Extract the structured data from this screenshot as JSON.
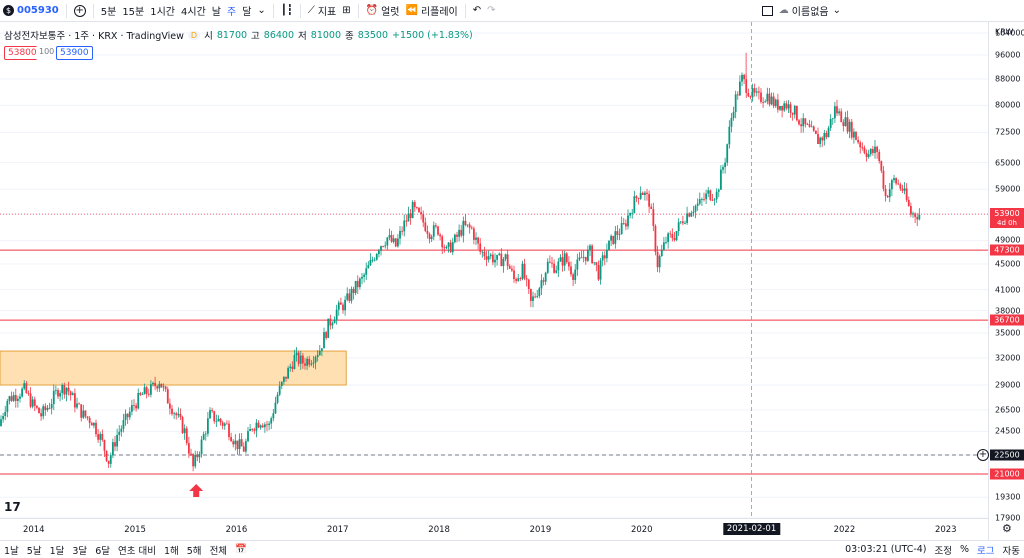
{
  "toolbar": {
    "symbol": "005930",
    "intervals": [
      "5분",
      "15분",
      "1시간",
      "4시간",
      "날",
      "주",
      "달"
    ],
    "active_interval": "주",
    "indicators_label": "지표",
    "alert_label": "얼럿",
    "replay_label": "리플레이",
    "layout_name": "이름없음"
  },
  "legend": {
    "title": "삼성전자보통주 · 1주 · KRX · TradingView",
    "badge": "D",
    "open_label": "시",
    "open": "81700",
    "high_label": "고",
    "high": "86400",
    "low_label": "저",
    "low": "81000",
    "close_label": "종",
    "close": "83500",
    "change": "+1500 (+1.83%)",
    "sell": "53800",
    "qty": "100",
    "buy": "53900"
  },
  "price_axis": {
    "currency": "KRW",
    "ticks": [
      "104000",
      "96000",
      "88000",
      "80000",
      "72500",
      "65000",
      "59000",
      "53900",
      "49000",
      "45000",
      "41000",
      "38000",
      "35000",
      "32000",
      "29000",
      "26500",
      "24500",
      "22500",
      "21000",
      "19300",
      "17900"
    ],
    "labels": [
      {
        "value": "53900",
        "sub": "4d 0h",
        "color": "#f23645"
      },
      {
        "value": "47300",
        "color": "#f23645"
      },
      {
        "value": "36700",
        "color": "#f23645"
      },
      {
        "value": "22500",
        "color": "#131722"
      },
      {
        "value": "21000",
        "color": "#f23645"
      }
    ]
  },
  "time_axis": {
    "ticks": [
      "2014",
      "2015",
      "2016",
      "2017",
      "2018",
      "2019",
      "2020",
      "2021-02-01",
      "2022",
      "2023"
    ],
    "crosshair_date": "2021-02-01"
  },
  "bottombar": {
    "ranges": [
      "1날",
      "5날",
      "1달",
      "3달",
      "6달",
      "연초 대비",
      "1해",
      "5해",
      "전체"
    ],
    "time": "03:03:21 (UTC-4)",
    "adjust": "조정",
    "percent": "%",
    "log": "로그",
    "auto": "자동"
  },
  "colors": {
    "up": "#089981",
    "down": "#f23645",
    "accent": "#2962ff",
    "zone": "#ffe0b2"
  },
  "chart_data": {
    "type": "candlestick",
    "x_range": [
      "2013-09",
      "2023-06"
    ],
    "log_scale": true,
    "ylim": [
      17900,
      104000
    ],
    "weekly_close": [
      [
        "2013-09",
        25000
      ],
      [
        "2013-10",
        27500
      ],
      [
        "2013-11",
        28000
      ],
      [
        "2013-12",
        28500
      ],
      [
        "2014-01",
        27000
      ],
      [
        "2014-02",
        26000
      ],
      [
        "2014-03",
        27000
      ],
      [
        "2014-04",
        28500
      ],
      [
        "2014-05",
        28800
      ],
      [
        "2014-06",
        27200
      ],
      [
        "2014-07",
        26000
      ],
      [
        "2014-08",
        25500
      ],
      [
        "2014-09",
        24000
      ],
      [
        "2014-10",
        22000
      ],
      [
        "2014-11",
        24200
      ],
      [
        "2014-12",
        25500
      ],
      [
        "2015-01",
        27000
      ],
      [
        "2015-02",
        28000
      ],
      [
        "2015-03",
        28500
      ],
      [
        "2015-04",
        29500
      ],
      [
        "2015-05",
        27500
      ],
      [
        "2015-06",
        26000
      ],
      [
        "2015-07",
        24500
      ],
      [
        "2015-08",
        21500
      ],
      [
        "2015-09",
        23500
      ],
      [
        "2015-10",
        26000
      ],
      [
        "2015-11",
        25500
      ],
      [
        "2015-12",
        25000
      ],
      [
        "2016-01",
        23500
      ],
      [
        "2016-02",
        23000
      ],
      [
        "2016-03",
        25000
      ],
      [
        "2016-04",
        25500
      ],
      [
        "2016-05",
        25000
      ],
      [
        "2016-06",
        28000
      ],
      [
        "2016-07",
        30000
      ],
      [
        "2016-08",
        32000
      ],
      [
        "2016-09",
        31500
      ],
      [
        "2016-10",
        32000
      ],
      [
        "2016-11",
        33000
      ],
      [
        "2016-12",
        36000
      ],
      [
        "2017-01",
        38000
      ],
      [
        "2017-02",
        39000
      ],
      [
        "2017-03",
        41000
      ],
      [
        "2017-04",
        42500
      ],
      [
        "2017-05",
        45000
      ],
      [
        "2017-06",
        48000
      ],
      [
        "2017-07",
        49500
      ],
      [
        "2017-08",
        48000
      ],
      [
        "2017-09",
        52000
      ],
      [
        "2017-10",
        55000
      ],
      [
        "2017-11",
        53000
      ],
      [
        "2017-12",
        50500
      ],
      [
        "2018-01",
        51000
      ],
      [
        "2018-02",
        47000
      ],
      [
        "2018-03",
        49000
      ],
      [
        "2018-04",
        51500
      ],
      [
        "2018-05",
        51000
      ],
      [
        "2018-06",
        47000
      ],
      [
        "2018-07",
        46500
      ],
      [
        "2018-08",
        45500
      ],
      [
        "2018-09",
        46000
      ],
      [
        "2018-10",
        42500
      ],
      [
        "2018-11",
        44000
      ],
      [
        "2018-12",
        39000
      ],
      [
        "2019-01",
        41500
      ],
      [
        "2019-02",
        45000
      ],
      [
        "2019-03",
        44500
      ],
      [
        "2019-04",
        46000
      ],
      [
        "2019-05",
        43500
      ],
      [
        "2019-06",
        46000
      ],
      [
        "2019-07",
        47000
      ],
      [
        "2019-08",
        43500
      ],
      [
        "2019-09",
        47500
      ],
      [
        "2019-10",
        50000
      ],
      [
        "2019-11",
        51500
      ],
      [
        "2019-12",
        55500
      ],
      [
        "2020-01",
        59000
      ],
      [
        "2020-02",
        56500
      ],
      [
        "2020-03",
        45000
      ],
      [
        "2020-04",
        49000
      ],
      [
        "2020-05",
        50000
      ],
      [
        "2020-06",
        53000
      ],
      [
        "2020-07",
        55000
      ],
      [
        "2020-08",
        56000
      ],
      [
        "2020-09",
        58000
      ],
      [
        "2020-10",
        58000
      ],
      [
        "2020-11",
        66000
      ],
      [
        "2020-12",
        80000
      ],
      [
        "2021-01",
        88000
      ],
      [
        "2021-02",
        83500
      ],
      [
        "2021-03",
        82000
      ],
      [
        "2021-04",
        83000
      ],
      [
        "2021-05",
        80000
      ],
      [
        "2021-06",
        80500
      ],
      [
        "2021-07",
        79000
      ],
      [
        "2021-08",
        75000
      ],
      [
        "2021-09",
        73000
      ],
      [
        "2021-10",
        70500
      ],
      [
        "2021-11",
        72000
      ],
      [
        "2021-12",
        79000
      ],
      [
        "2022-01",
        76000
      ],
      [
        "2022-02",
        73000
      ],
      [
        "2022-03",
        69500
      ],
      [
        "2022-04",
        67000
      ],
      [
        "2022-05",
        68000
      ],
      [
        "2022-06",
        57500
      ],
      [
        "2022-07",
        61000
      ],
      [
        "2022-08",
        59000
      ],
      [
        "2022-09",
        54000
      ],
      [
        "2022-10",
        53900
      ]
    ],
    "horizontal_lines": [
      47300,
      36700,
      22500,
      21000
    ],
    "zone": {
      "from": "2013-09",
      "to": "2017-02",
      "low": 29000,
      "high": 32800
    },
    "markers": [
      {
        "date": "2015-08",
        "type": "arrow-up"
      }
    ]
  }
}
